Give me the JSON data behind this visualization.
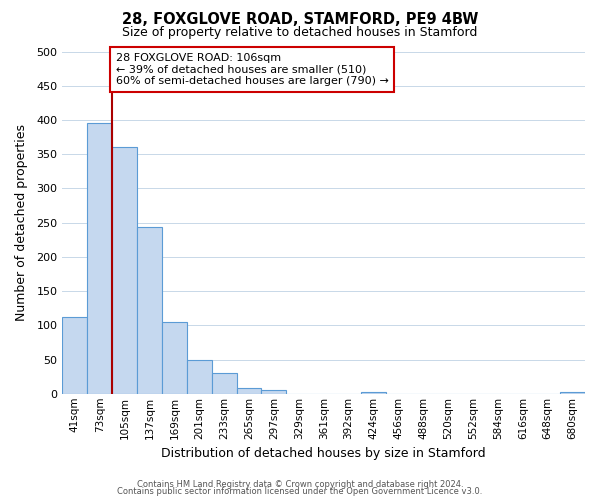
{
  "title": "28, FOXGLOVE ROAD, STAMFORD, PE9 4BW",
  "subtitle": "Size of property relative to detached houses in Stamford",
  "xlabel": "Distribution of detached houses by size in Stamford",
  "ylabel": "Number of detached properties",
  "bar_labels": [
    "41sqm",
    "73sqm",
    "105sqm",
    "137sqm",
    "169sqm",
    "201sqm",
    "233sqm",
    "265sqm",
    "297sqm",
    "329sqm",
    "361sqm",
    "392sqm",
    "424sqm",
    "456sqm",
    "488sqm",
    "520sqm",
    "552sqm",
    "584sqm",
    "616sqm",
    "648sqm",
    "680sqm"
  ],
  "bar_values": [
    112,
    395,
    360,
    243,
    105,
    50,
    30,
    8,
    5,
    0,
    0,
    0,
    2,
    0,
    0,
    0,
    0,
    0,
    0,
    0,
    2
  ],
  "bar_color": "#c5d8ef",
  "bar_edge_color": "#5b9bd5",
  "vline_color": "#aa0000",
  "annotation_text": "28 FOXGLOVE ROAD: 106sqm\n← 39% of detached houses are smaller (510)\n60% of semi-detached houses are larger (790) →",
  "annotation_box_color": "#ffffff",
  "annotation_box_edge": "#cc0000",
  "ylim": [
    0,
    500
  ],
  "yticks": [
    0,
    50,
    100,
    150,
    200,
    250,
    300,
    350,
    400,
    450,
    500
  ],
  "grid_color": "#c8d8e8",
  "background_color": "#ffffff",
  "vline_bar_index": 2,
  "footer_line1": "Contains HM Land Registry data © Crown copyright and database right 2024.",
  "footer_line2": "Contains public sector information licensed under the Open Government Licence v3.0."
}
